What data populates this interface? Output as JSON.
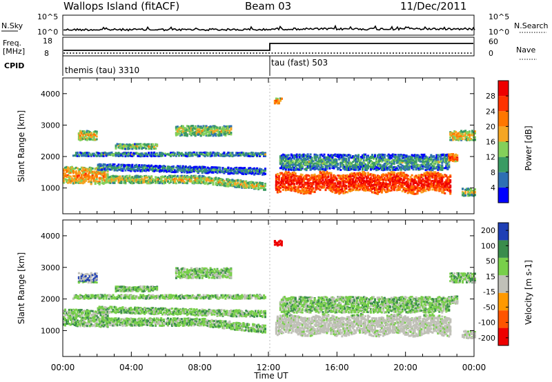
{
  "header": {
    "station": "Wallops Island (fitACF)",
    "beam": "Beam 03",
    "date": "11/Dec/2011"
  },
  "top_panel": {
    "left_label": "N.Sky",
    "left_ticks": [
      "10^5",
      "10^0"
    ],
    "right_label": "N.Search",
    "right_ticks": [
      "10^5",
      "10^0"
    ]
  },
  "freq_panel": {
    "left_label_1": "Freq.",
    "left_label_2": "[MHz]",
    "left_ticks": [
      "18",
      "8"
    ],
    "right_label": "Nave",
    "right_ticks": [
      "60",
      "0"
    ],
    "cpid_label": "CPID",
    "mode_1": "themis (tau) 3310",
    "mode_2": "tau (fast) 503"
  },
  "colors": {
    "power": [
      "#0000ff",
      "#2e6fb3",
      "#3a9b63",
      "#84d05a",
      "#f5a623",
      "#ff7700",
      "#ff3300",
      "#ee0000"
    ],
    "velocity": [
      "#1f3fb5",
      "#3a8c4c",
      "#78cf4a",
      "#c0c0b8",
      "#ff9900",
      "#ff5500",
      "#ee0000"
    ]
  },
  "chart_data": [
    {
      "type": "heatmap",
      "panel": "power",
      "ylabel": "Slant Range [km]",
      "xlabel": "Time UT",
      "x_ticks": [
        "00:00",
        "04:00",
        "08:00",
        "12:00",
        "16:00",
        "20:00",
        "00:00"
      ],
      "y_ticks": [
        "1000",
        "2000",
        "3000",
        "4000"
      ],
      "ylim": [
        180,
        4500
      ],
      "xlim_hours": [
        0,
        24
      ],
      "colorbar_label": "Power [dB]",
      "colorbar_ticks": [
        "4",
        "8",
        "12",
        "16",
        "20",
        "24",
        "28"
      ],
      "colorbar_range": [
        0,
        32
      ]
    },
    {
      "type": "heatmap",
      "panel": "velocity",
      "ylabel": "Slant Range [km]",
      "xlabel": "Time UT",
      "x_ticks": [
        "00:00",
        "04:00",
        "08:00",
        "12:00",
        "16:00",
        "20:00",
        "00:00"
      ],
      "y_ticks": [
        "1000",
        "2000",
        "3000",
        "4000"
      ],
      "ylim": [
        180,
        4500
      ],
      "xlim_hours": [
        0,
        24
      ],
      "colorbar_label": "Velocity [m s-1]",
      "colorbar_ticks": [
        "200",
        "100",
        "50",
        "15",
        "-15",
        "-50",
        "-100",
        "-200"
      ],
      "colorbar_range": [
        -250,
        250
      ]
    }
  ]
}
